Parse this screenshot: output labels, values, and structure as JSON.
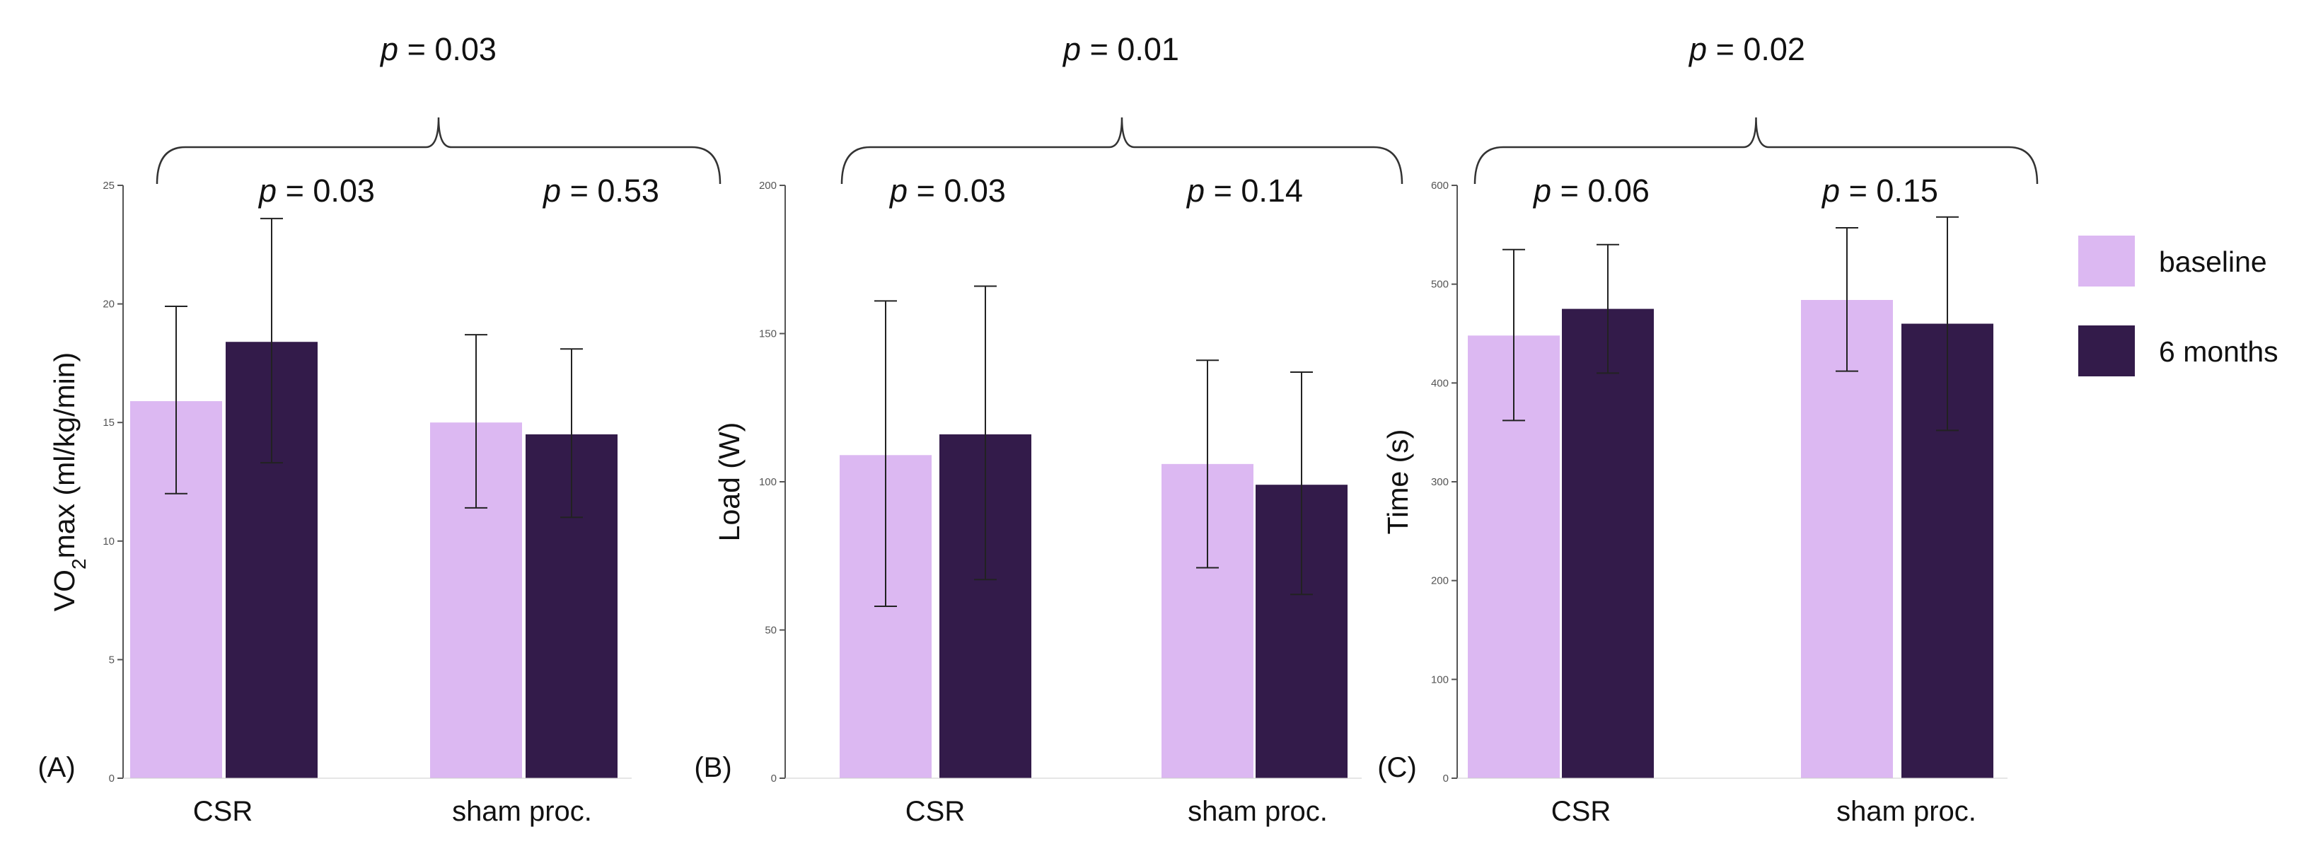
{
  "colors": {
    "baseline": "#dcb8f2",
    "six_months": "#331b4a",
    "axis": "#555555",
    "text": "#111111"
  },
  "legend": {
    "placement": "right",
    "items": [
      {
        "label": "baseline",
        "color": "#dcb8f2"
      },
      {
        "label": "6 months",
        "color": "#331b4a"
      }
    ]
  },
  "chart_data": [
    {
      "type": "bar",
      "panel": "(A)",
      "ylabel_parts": [
        "VO",
        "2",
        "max (ml/kg/min)"
      ],
      "categories": [
        "CSR",
        "sham proc."
      ],
      "ylim": [
        0,
        25
      ],
      "yticks": [
        0,
        5,
        10,
        15,
        20,
        25
      ],
      "series": [
        {
          "name": "baseline",
          "values": [
            15.9,
            15.0
          ],
          "err_low": [
            12.0,
            11.4
          ],
          "err_high": [
            19.9,
            18.7
          ]
        },
        {
          "name": "6 months",
          "values": [
            18.4,
            14.5
          ],
          "err_low": [
            13.3,
            11.0
          ],
          "err_high": [
            23.6,
            18.1
          ]
        }
      ],
      "p_overall": {
        "prefix": "p",
        "text": " = 0.03"
      },
      "p_groups": [
        {
          "prefix": "p",
          "text": " = 0.03"
        },
        {
          "prefix": "p",
          "text": " = 0.53"
        }
      ]
    },
    {
      "type": "bar",
      "panel": "(B)",
      "ylabel_parts": [
        "Load (W)"
      ],
      "categories": [
        "CSR",
        "sham proc."
      ],
      "ylim": [
        0,
        200
      ],
      "yticks": [
        0,
        50,
        100,
        150,
        200
      ],
      "series": [
        {
          "name": "baseline",
          "values": [
            109,
            106
          ],
          "err_low": [
            58,
            71
          ],
          "err_high": [
            161,
            141
          ]
        },
        {
          "name": "6 months",
          "values": [
            116,
            99
          ],
          "err_low": [
            67,
            62
          ],
          "err_high": [
            166,
            137
          ]
        }
      ],
      "p_overall": {
        "prefix": "p",
        "text": " = 0.01"
      },
      "p_groups": [
        {
          "prefix": "p",
          "text": " = 0.03"
        },
        {
          "prefix": "p",
          "text": " = 0.14"
        }
      ]
    },
    {
      "type": "bar",
      "panel": "(C)",
      "ylabel_parts": [
        "Time (s)"
      ],
      "categories": [
        "CSR",
        "sham proc."
      ],
      "ylim": [
        0,
        600
      ],
      "yticks": [
        0,
        100,
        200,
        300,
        400,
        500,
        600
      ],
      "series": [
        {
          "name": "baseline",
          "values": [
            448,
            484
          ],
          "err_low": [
            362,
            412
          ],
          "err_high": [
            535,
            557
          ]
        },
        {
          "name": "6 months",
          "values": [
            475,
            460
          ],
          "err_low": [
            410,
            352
          ],
          "err_high": [
            540,
            568
          ]
        }
      ],
      "p_overall": {
        "prefix": "p",
        "text": " = 0.02"
      },
      "p_groups": [
        {
          "prefix": "p",
          "text": " = 0.06"
        },
        {
          "prefix": "p",
          "text": " = 0.15"
        }
      ]
    }
  ]
}
